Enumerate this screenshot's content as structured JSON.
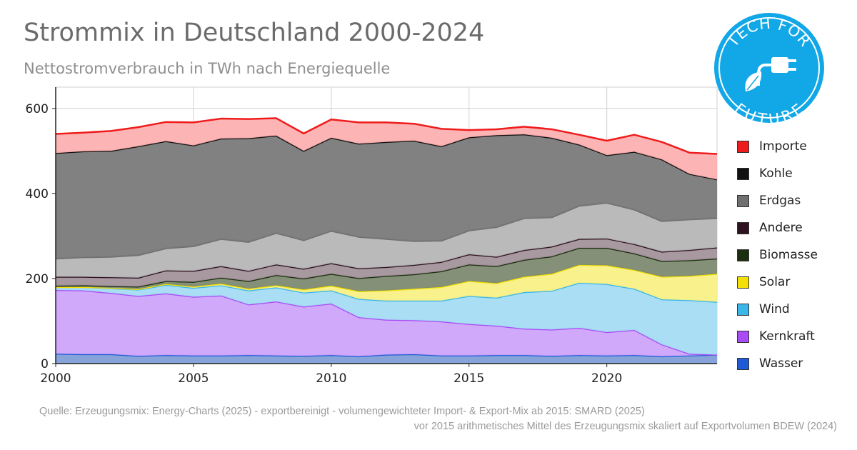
{
  "header": {
    "title": "Strommix in Deutschland 2000-2024",
    "subtitle": "Nettostromverbrauch in TWh nach Energiequelle"
  },
  "logo": {
    "text_top": "TECH FOR",
    "text_bottom": "FUTURE",
    "icon": "plug-leaf-icon",
    "color": "#12a7e6"
  },
  "source": {
    "line1": "Quelle: Erzeugungsmix: Energy-Charts (2025) - exportbereinigt - volumengewichteter Import- & Export-Mix ab 2015: SMARD (2025)",
    "line2": "vor 2015 arithmetisches Mittel des Erzeugungsmix skaliert auf Exportvolumen BDEW (2024)"
  },
  "chart_data": {
    "type": "area",
    "stacked": true,
    "title": "Strommix in Deutschland 2000-2024",
    "subtitle": "Nettostromverbrauch in TWh nach Energiequelle",
    "xlabel": "",
    "ylabel": "",
    "x": [
      2000,
      2001,
      2002,
      2003,
      2004,
      2005,
      2006,
      2007,
      2008,
      2009,
      2010,
      2011,
      2012,
      2013,
      2014,
      2015,
      2016,
      2017,
      2018,
      2019,
      2020,
      2021,
      2022,
      2023,
      2024
    ],
    "xticks": [
      2000,
      2005,
      2010,
      2015,
      2020
    ],
    "yticks": [
      0,
      200,
      400,
      600
    ],
    "xlim": [
      2000,
      2024
    ],
    "ylim": [
      0,
      650
    ],
    "grid": true,
    "legend_position": "right",
    "series": [
      {
        "name": "Wasser",
        "color": "#1f5bd6",
        "fill": "#7f9fd7",
        "values": [
          23,
          22,
          22,
          18,
          20,
          19,
          19,
          20,
          19,
          18,
          20,
          17,
          21,
          22,
          19,
          19,
          20,
          20,
          18,
          20,
          19,
          20,
          17,
          19,
          21
        ]
      },
      {
        "name": "Kernkraft",
        "color": "#a94cf5",
        "fill": "#cfa4fb",
        "values": [
          150,
          150,
          144,
          141,
          145,
          138,
          141,
          119,
          127,
          116,
          121,
          92,
          82,
          80,
          80,
          74,
          69,
          62,
          62,
          64,
          55,
          59,
          28,
          4,
          0
        ]
      },
      {
        "name": "Wind",
        "color": "#3ab6e8",
        "fill": "#a4dcf3",
        "values": [
          7,
          8,
          11,
          15,
          20,
          21,
          24,
          33,
          33,
          33,
          31,
          43,
          45,
          46,
          49,
          66,
          66,
          86,
          91,
          106,
          113,
          97,
          106,
          126,
          124
        ]
      },
      {
        "name": "Solar",
        "color": "#f4e006",
        "fill": "#f8f086",
        "values": [
          0,
          0,
          1,
          1,
          2,
          3,
          4,
          4,
          5,
          7,
          11,
          18,
          24,
          28,
          32,
          35,
          34,
          36,
          40,
          42,
          44,
          44,
          53,
          57,
          66
        ]
      },
      {
        "name": "Biomasse",
        "color": "#1c2e10",
        "fill": "#7d8a70",
        "values": [
          3,
          4,
          4,
          6,
          7,
          11,
          14,
          18,
          24,
          26,
          28,
          31,
          34,
          34,
          37,
          39,
          40,
          40,
          41,
          40,
          41,
          39,
          37,
          37,
          36
        ]
      },
      {
        "name": "Andere",
        "color": "#2e1220",
        "fill": "#a3929b",
        "values": [
          21,
          20,
          21,
          21,
          25,
          26,
          27,
          24,
          25,
          23,
          25,
          23,
          21,
          22,
          22,
          24,
          22,
          23,
          23,
          21,
          22,
          22,
          22,
          24,
          26
        ]
      },
      {
        "name": "Erdgas",
        "color": "#707070",
        "fill": "#b6b6b6",
        "values": [
          43,
          46,
          48,
          53,
          52,
          58,
          64,
          68,
          74,
          67,
          76,
          74,
          66,
          56,
          50,
          56,
          70,
          75,
          69,
          78,
          84,
          81,
          72,
          72,
          69
        ]
      },
      {
        "name": "Kohle",
        "color": "#111111",
        "fill": "#7a7a7a",
        "values": [
          248,
          249,
          249,
          256,
          252,
          237,
          236,
          244,
          229,
          210,
          219,
          219,
          228,
          236,
          222,
          219,
          216,
          197,
          187,
          144,
          112,
          136,
          145,
          107,
          91
        ]
      },
      {
        "name": "Importe",
        "color": "#ee1c1c",
        "fill": "#fdb0b0",
        "values": [
          45,
          44,
          47,
          45,
          45,
          54,
          47,
          45,
          41,
          41,
          43,
          50,
          46,
          40,
          41,
          17,
          14,
          18,
          20,
          23,
          34,
          40,
          41,
          50,
          60
        ]
      }
    ]
  }
}
